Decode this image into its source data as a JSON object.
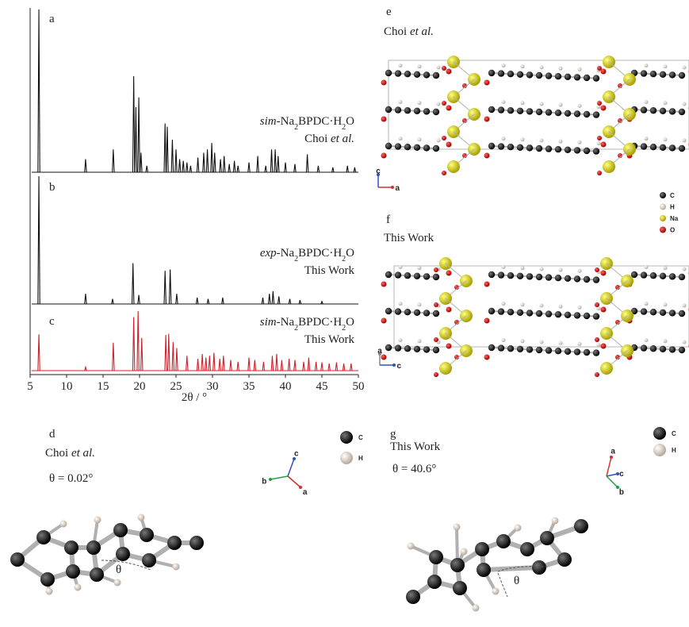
{
  "chart_data": {
    "type": "stick",
    "xlabel": "2θ / °",
    "xlim": [
      5,
      50
    ],
    "xticks": [
      5,
      10,
      15,
      20,
      25,
      30,
      35,
      40,
      45,
      50
    ],
    "series": [
      {
        "panel": "a",
        "label_prefix": "sim",
        "label_formula": "-Na2BPDC·H2O",
        "source": [
          "Choi",
          "et al."
        ],
        "color": "#111111",
        "x": [
          6.2,
          12.6,
          16.4,
          19.2,
          19.5,
          19.9,
          20.2,
          21.0,
          23.5,
          23.8,
          24.5,
          25.0,
          25.5,
          26.0,
          26.5,
          27.0,
          28.0,
          28.8,
          29.3,
          29.9,
          30.3,
          31.1,
          31.6,
          32.3,
          33.0,
          33.5,
          35.0,
          36.2,
          37.3,
          38.1,
          38.6,
          39.0,
          40.0,
          41.3,
          43.0,
          44.5,
          46.5,
          48.5,
          49.5
        ],
        "values": [
          100,
          8,
          14,
          59,
          40,
          46,
          12,
          4,
          30,
          28,
          20,
          14,
          8,
          7,
          6,
          4,
          9,
          12,
          14,
          18,
          12,
          8,
          10,
          5,
          7,
          4,
          6,
          10,
          4,
          14,
          14,
          10,
          6,
          5,
          11,
          4,
          3,
          4,
          3
        ]
      },
      {
        "panel": "b",
        "label_prefix": "exp",
        "label_formula": "-Na2BPDC·H2O",
        "source": "This Work",
        "color": "#111111",
        "x": [
          6.2,
          12.6,
          16.3,
          19.1,
          19.9,
          23.5,
          24.2,
          25.1,
          27.9,
          29.4,
          31.4,
          36.9,
          37.8,
          38.3,
          39.1,
          40.6,
          42.0,
          45.0
        ],
        "values": [
          100,
          8,
          4,
          32,
          7,
          26,
          27,
          8,
          5,
          4,
          5,
          5,
          8,
          10,
          6,
          4,
          3,
          2
        ]
      },
      {
        "panel": "c",
        "label_prefix": "sim",
        "label_formula": "-Na2BPDC·H2O",
        "source": "This Work",
        "color": "#d0202a",
        "x": [
          6.2,
          12.6,
          16.4,
          19.2,
          19.8,
          20.3,
          23.6,
          24.0,
          24.6,
          25.1,
          26.5,
          28.0,
          28.6,
          29.1,
          29.6,
          30.2,
          31.0,
          31.5,
          32.5,
          33.5,
          35.0,
          35.8,
          37.0,
          38.2,
          38.8,
          39.5,
          40.5,
          41.3,
          42.5,
          43.2,
          44.2,
          45.0,
          46.0,
          47.0,
          48.0,
          49.0
        ],
        "values": [
          61,
          6,
          47,
          90,
          100,
          55,
          60,
          62,
          48,
          38,
          25,
          20,
          28,
          22,
          25,
          30,
          20,
          25,
          18,
          15,
          22,
          18,
          15,
          25,
          28,
          18,
          20,
          18,
          15,
          22,
          15,
          14,
          12,
          14,
          12,
          12
        ]
      }
    ]
  },
  "panels": {
    "d": {
      "letter": "d",
      "source": [
        "Choi",
        "et al."
      ],
      "angle": "θ = 0.02°",
      "theta": "θ",
      "axes": [
        "c",
        "b",
        "a"
      ],
      "legend": [
        "C",
        "H"
      ]
    },
    "e": {
      "letter": "e",
      "source": [
        "Choi",
        "et al."
      ],
      "axes": [
        "c",
        "a"
      ],
      "legend": [
        "C",
        "H",
        "Na",
        "O"
      ]
    },
    "f": {
      "letter": "f",
      "source": "This Work",
      "axes": [
        "a",
        "c"
      ]
    },
    "g": {
      "letter": "g",
      "source": "This Work",
      "angle": "θ = 40.6°",
      "theta": "θ",
      "axes": [
        "a",
        "c",
        "b"
      ],
      "legend": [
        "C",
        "H"
      ]
    }
  }
}
